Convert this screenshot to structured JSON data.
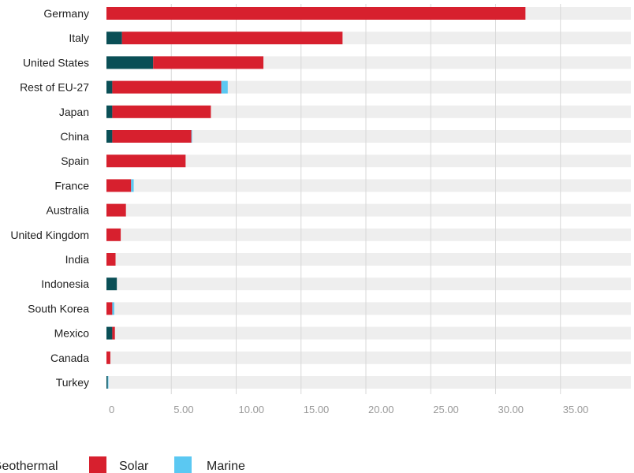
{
  "chart_data": {
    "type": "bar",
    "orientation": "horizontal",
    "stacked": true,
    "categories": [
      "Germany",
      "Italy",
      "United States",
      "Rest of EU-27",
      "Japan",
      "China",
      "Spain",
      "France",
      "Australia",
      "United Kingdom",
      "India",
      "Indonesia",
      "South Korea",
      "Mexico",
      "Canada",
      "Turkey"
    ],
    "series": [
      {
        "name": "Geothermal",
        "color": "#0a4f56",
        "values": [
          0,
          1.2,
          3.6,
          0.45,
          0.45,
          0.45,
          0,
          0,
          0,
          0,
          0,
          0.8,
          0,
          0.45,
          0,
          0.1
        ]
      },
      {
        "name": "Solar",
        "color": "#d7202e",
        "values": [
          32.3,
          17.0,
          8.5,
          8.4,
          7.6,
          6.1,
          6.1,
          1.9,
          1.5,
          1.1,
          0.7,
          0,
          0.45,
          0.2,
          0.3,
          0
        ]
      },
      {
        "name": "Marine",
        "color": "#5bc8f2",
        "values": [
          0,
          0,
          0,
          0.5,
          0,
          0.05,
          0,
          0.2,
          0,
          0,
          0,
          0,
          0.15,
          0,
          0,
          0.05
        ]
      }
    ],
    "x_ticks": [
      "0",
      "5.00",
      "10.00",
      "15.00",
      "20.00",
      "25.00",
      "30.00",
      "35.00"
    ],
    "xlim": [
      0,
      40
    ],
    "grid": true,
    "legend_position": "bottom-left"
  }
}
